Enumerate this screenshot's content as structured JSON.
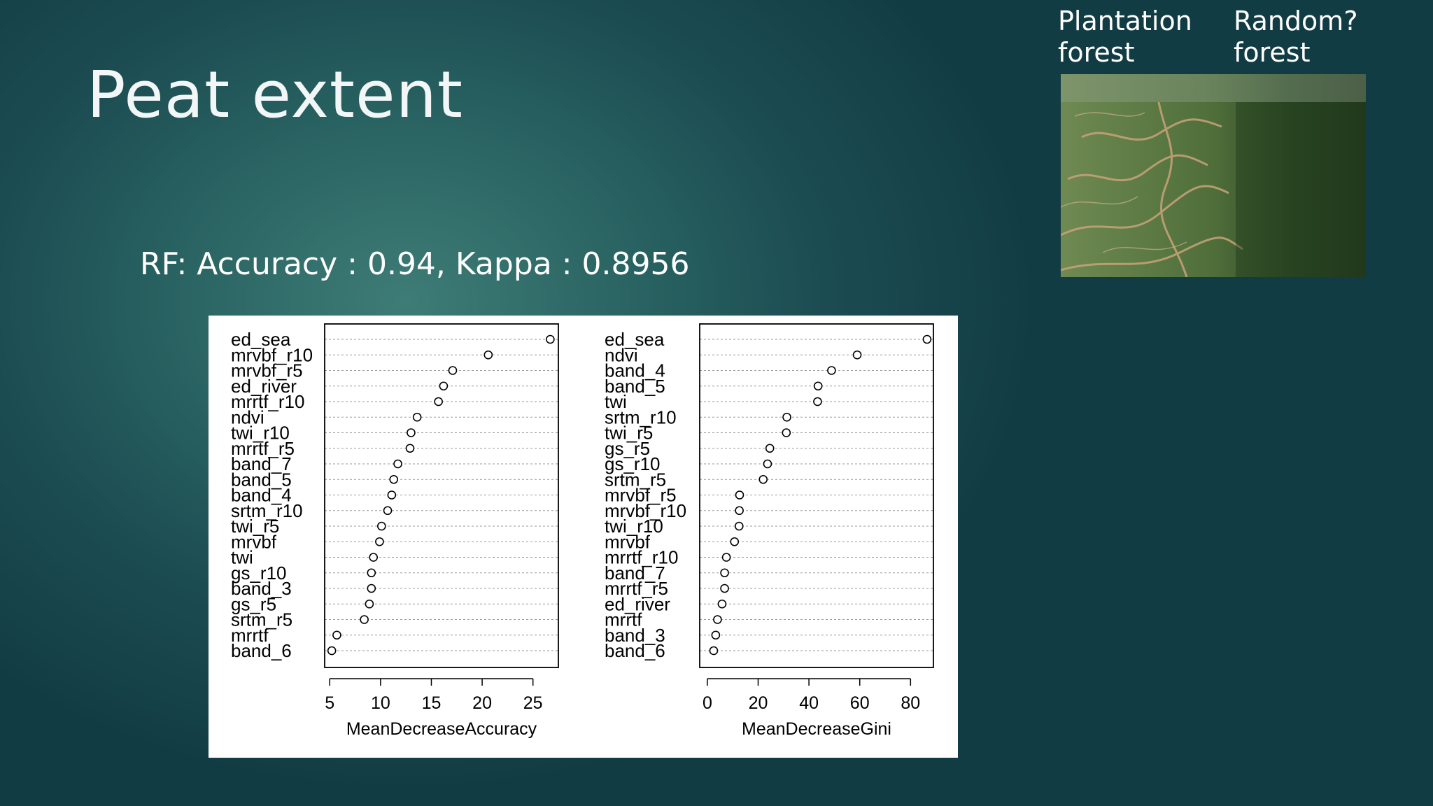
{
  "slide": {
    "title": "Peat extent",
    "metrics_line": "RF: Accuracy : 0.94, Kappa : 0.8956",
    "photo_label_left": "Plantation\nforest",
    "photo_label_right": "Random?\nforest",
    "photo_label_left_lines": [
      "Plantation",
      "forest"
    ],
    "photo_label_right_lines": [
      "Random?",
      "forest"
    ],
    "photo": "aerial-plantation-forest-image"
  },
  "chart_data": [
    {
      "type": "scatter",
      "title": "",
      "xlabel": "MeanDecreaseAccuracy",
      "ylabel": "",
      "xlim": [
        4.5,
        27.5
      ],
      "xticks": [
        5,
        10,
        15,
        20,
        25
      ],
      "grid": true,
      "categories": [
        "ed_sea",
        "mrvbf_r10",
        "mrvbf_r5",
        "ed_river",
        "mrrtf_r10",
        "ndvi",
        "twi_r10",
        "mrrtf_r5",
        "band_7",
        "band_5",
        "band_4",
        "srtm_r10",
        "twi_r5",
        "mrvbf",
        "twi",
        "gs_r10",
        "band_3",
        "gs_r5",
        "srtm_r5",
        "mrrtf",
        "band_6"
      ],
      "values": [
        26.7,
        20.6,
        17.1,
        16.2,
        15.7,
        13.6,
        13.0,
        12.9,
        11.7,
        11.3,
        11.1,
        10.7,
        10.1,
        9.9,
        9.3,
        9.1,
        9.1,
        8.9,
        8.4,
        5.7,
        5.2
      ]
    },
    {
      "type": "scatter",
      "title": "",
      "xlabel": "MeanDecreaseGini",
      "ylabel": "",
      "xlim": [
        -3,
        89
      ],
      "xticks": [
        0,
        20,
        40,
        60,
        80
      ],
      "grid": true,
      "categories": [
        "ed_sea",
        "ndvi",
        "band_4",
        "band_5",
        "twi",
        "srtm_r10",
        "twi_r5",
        "gs_r5",
        "gs_r10",
        "srtm_r5",
        "mrvbf_r5",
        "mrvbf_r10",
        "twi_r10",
        "mrvbf",
        "mrrtf_r10",
        "band_7",
        "mrrtf_r5",
        "ed_river",
        "mrrtf",
        "band_3",
        "band_6"
      ],
      "values": [
        86.5,
        59.0,
        48.9,
        43.6,
        43.4,
        31.3,
        31.1,
        24.6,
        23.7,
        22.0,
        12.7,
        12.6,
        12.5,
        10.7,
        7.5,
        6.8,
        6.8,
        5.8,
        4.0,
        3.3,
        2.5
      ]
    }
  ]
}
